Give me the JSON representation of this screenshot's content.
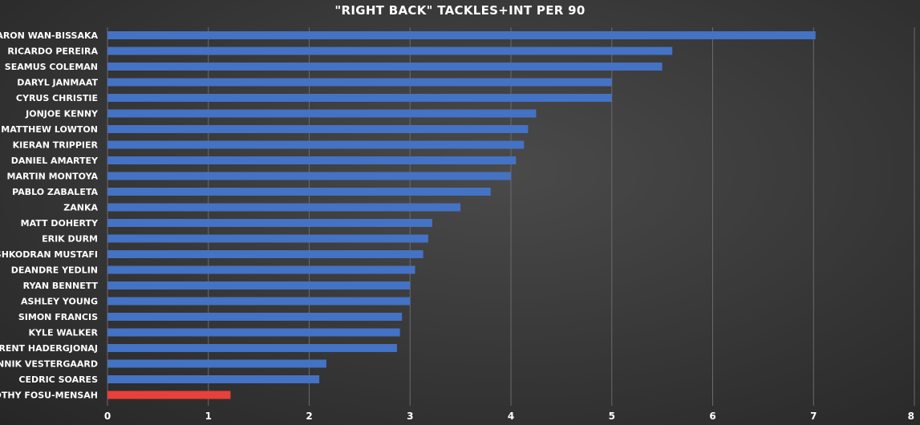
{
  "chart_data": {
    "type": "bar",
    "orientation": "horizontal",
    "title": "\"RIGHT BACK\" TACKLES+INT PER 90",
    "xlabel": "",
    "ylabel": "",
    "xlim": [
      0,
      8
    ],
    "x_ticks": [
      "0",
      "1",
      "2",
      "3",
      "4",
      "5",
      "6",
      "7",
      "8"
    ],
    "grid": true,
    "legend": "none",
    "categories": [
      "AARON WAN-BISSAKA",
      "RICARDO PEREIRA",
      "SEAMUS COLEMAN",
      "DARYL JANMAAT",
      "CYRUS CHRISTIE",
      "JONJOE KENNY",
      "MATTHEW LOWTON",
      "KIERAN TRIPPIER",
      "DANIEL AMARTEY",
      "MARTIN MONTOYA",
      "PABLO ZABALETA",
      "ZANKA",
      "MATT DOHERTY",
      "ERIK DURM",
      "SHKODRAN MUSTAFI",
      "DEANDRE YEDLIN",
      "RYAN BENNETT",
      "ASHLEY YOUNG",
      "SIMON FRANCIS",
      "KYLE WALKER",
      "FLORENT HADERGJONAJ",
      "JANNIK VESTERGAARD",
      "CEDRIC SOARES",
      "TIMOTHY FOSU-MENSAH"
    ],
    "values": [
      7.02,
      5.6,
      5.5,
      5.0,
      5.0,
      4.25,
      4.17,
      4.13,
      4.05,
      4.0,
      3.8,
      3.5,
      3.22,
      3.18,
      3.13,
      3.05,
      3.0,
      3.0,
      2.92,
      2.9,
      2.87,
      2.17,
      2.1,
      1.22
    ],
    "colors": {
      "default": "#4472c4",
      "highlight": "#e8403a",
      "highlight_category": "TIMOTHY FOSU-MENSAH",
      "gridline": "#6a6a6a"
    }
  }
}
